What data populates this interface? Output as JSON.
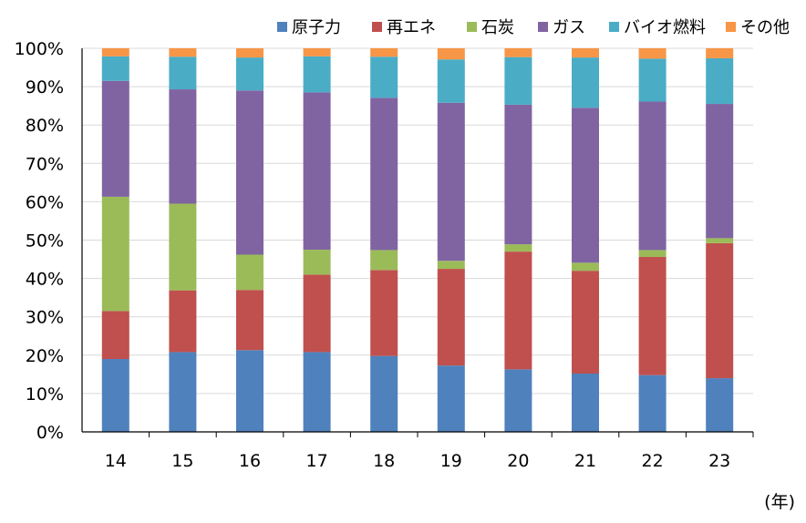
{
  "chart_data": {
    "type": "bar",
    "stacked": true,
    "title": "",
    "xlabel": "(年)",
    "ylabel": "",
    "ylim": [
      0,
      100
    ],
    "y_ticks": [
      "0%",
      "10%",
      "20%",
      "30%",
      "40%",
      "50%",
      "60%",
      "70%",
      "80%",
      "90%",
      "100%"
    ],
    "grid": true,
    "legend_position": "top-right",
    "categories": [
      "14",
      "15",
      "16",
      "17",
      "18",
      "19",
      "20",
      "21",
      "22",
      "23"
    ],
    "series": [
      {
        "name": "原子力",
        "color": "#4f81bd",
        "values": [
          19,
          20.8,
          21.3,
          20.8,
          19.8,
          17.3,
          16.3,
          15.2,
          14.8,
          14
        ]
      },
      {
        "name": "再エネ",
        "color": "#c0504d",
        "values": [
          12.5,
          16.1,
          15.7,
          20.2,
          22.4,
          25.2,
          30.7,
          26.8,
          30.8,
          35.2
        ]
      },
      {
        "name": "石炭",
        "color": "#9bbb59",
        "values": [
          29.8,
          22.6,
          9.2,
          6.5,
          5.2,
          2.1,
          1.9,
          2.1,
          1.8,
          1.3
        ]
      },
      {
        "name": "ガス",
        "color": "#8064a2",
        "values": [
          30.2,
          29.8,
          42.8,
          41,
          39.7,
          41.2,
          36.4,
          40.4,
          38.7,
          35
        ]
      },
      {
        "name": "バイオ燃料",
        "color": "#4bacc6",
        "values": [
          6.4,
          8.5,
          8.6,
          9.4,
          10.7,
          11.3,
          12.4,
          13.1,
          11.2,
          11.9
        ]
      },
      {
        "name": "その他",
        "color": "#f79646",
        "values": [
          2.1,
          2.2,
          2.4,
          2.1,
          2.2,
          2.9,
          2.3,
          2.4,
          2.7,
          2.6
        ]
      }
    ]
  }
}
